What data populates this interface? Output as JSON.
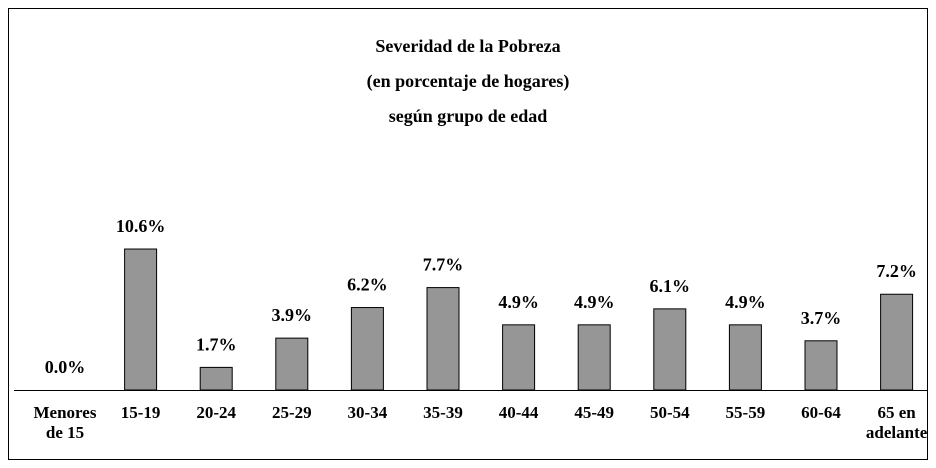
{
  "chart_data": {
    "type": "bar",
    "title": "Severidad de la Pobreza",
    "subtitle": [
      "(en porcentaje de hogares)",
      "según grupo de edad"
    ],
    "categories": [
      "Menores de 15",
      "15-19",
      "20-24",
      "25-29",
      "30-34",
      "35-39",
      "40-44",
      "45-49",
      "50-54",
      "55-59",
      "60-64",
      "65 en adelante"
    ],
    "values": [
      0.0,
      10.6,
      1.7,
      3.9,
      6.2,
      7.7,
      4.9,
      4.9,
      6.1,
      4.9,
      3.7,
      7.2
    ],
    "value_labels": [
      "0.0%",
      "10.6%",
      "1.7%",
      "3.9%",
      "6.2%",
      "7.7%",
      "4.9%",
      "4.9%",
      "6.1%",
      "4.9%",
      "3.7%",
      "7.2%"
    ],
    "color": "#969696"
  }
}
